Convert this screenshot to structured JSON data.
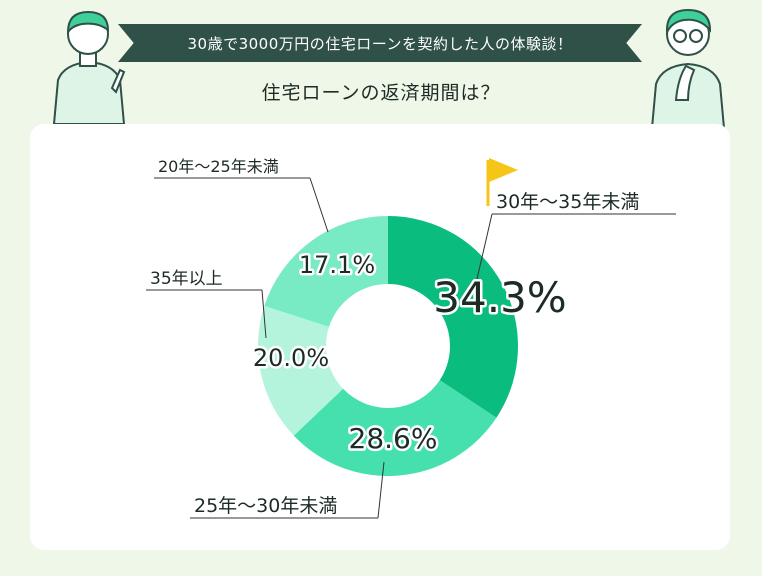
{
  "header": {
    "banner_text": "30歳で3000万円の住宅ローンを契約した人の体験談！",
    "subtitle": "住宅ローンの返済期間は？"
  },
  "colors": {
    "background": "#eef7e8",
    "banner": "#2f5148",
    "accent_flag": "#f5c518"
  },
  "icons": [
    "person-pointing-icon",
    "person-thinking-icon",
    "flag-icon"
  ],
  "chart_data": {
    "type": "pie",
    "donut": true,
    "categories": [
      "30年〜35年未満",
      "25年〜30年未満",
      "20年〜25年未満",
      "35年以上"
    ],
    "values": [
      34.3,
      28.6,
      17.1,
      20.0
    ],
    "value_labels": [
      "34.3%",
      "28.6%",
      "17.1%",
      "20.0%"
    ],
    "colors": [
      "#0abd7e",
      "#46e0ae",
      "#b4f4dc",
      "#78eac4"
    ],
    "title": ""
  }
}
